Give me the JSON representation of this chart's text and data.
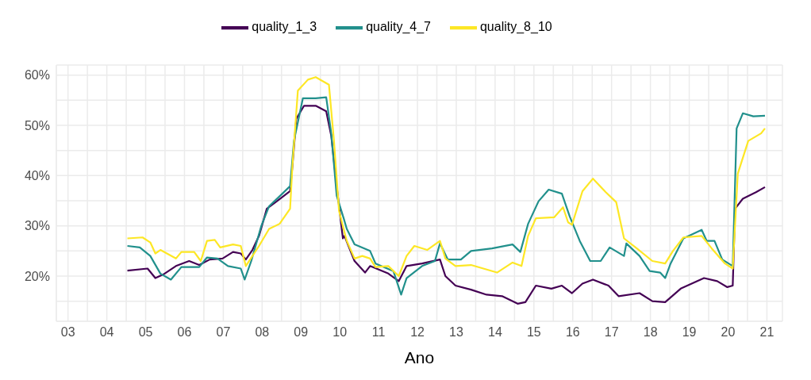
{
  "chart_data": {
    "type": "line",
    "xlabel": "Ano",
    "legend": "top",
    "grid": true,
    "marker": "none",
    "line_style": "solid",
    "xlim": [
      2.7,
      21.4
    ],
    "xticks": [
      {
        "value": 3,
        "label": "03"
      },
      {
        "value": 3.5,
        "label": null
      },
      {
        "value": 4,
        "label": "04"
      },
      {
        "value": 4.5,
        "label": null
      },
      {
        "value": 5,
        "label": "05"
      },
      {
        "value": 5.5,
        "label": null
      },
      {
        "value": 6,
        "label": "06"
      },
      {
        "value": 6.5,
        "label": null
      },
      {
        "value": 7,
        "label": "07"
      },
      {
        "value": 7.5,
        "label": null
      },
      {
        "value": 8,
        "label": "08"
      },
      {
        "value": 8.5,
        "label": null
      },
      {
        "value": 9,
        "label": "09"
      },
      {
        "value": 9.5,
        "label": null
      },
      {
        "value": 10,
        "label": "10"
      },
      {
        "value": 10.5,
        "label": null
      },
      {
        "value": 11,
        "label": "11"
      },
      {
        "value": 11.5,
        "label": null
      },
      {
        "value": 12,
        "label": "12"
      },
      {
        "value": 12.5,
        "label": null
      },
      {
        "value": 13,
        "label": "13"
      },
      {
        "value": 13.5,
        "label": null
      },
      {
        "value": 14,
        "label": "14"
      },
      {
        "value": 14.5,
        "label": null
      },
      {
        "value": 15,
        "label": "15"
      },
      {
        "value": 15.5,
        "label": null
      },
      {
        "value": 16,
        "label": "16"
      },
      {
        "value": 16.5,
        "label": null
      },
      {
        "value": 17,
        "label": "17"
      },
      {
        "value": 17.5,
        "label": null
      },
      {
        "value": 18,
        "label": "18"
      },
      {
        "value": 18.5,
        "label": null
      },
      {
        "value": 19,
        "label": "19"
      },
      {
        "value": 19.5,
        "label": null
      },
      {
        "value": 20,
        "label": "20"
      },
      {
        "value": 20.5,
        "label": null
      },
      {
        "value": 21,
        "label": "21"
      }
    ],
    "ylim": [
      11,
      62
    ],
    "yticks": [
      {
        "value": 15,
        "label": null
      },
      {
        "value": 20,
        "label": "20%"
      },
      {
        "value": 25,
        "label": null
      },
      {
        "value": 30,
        "label": "30%"
      },
      {
        "value": 35,
        "label": null
      },
      {
        "value": 40,
        "label": "40%"
      },
      {
        "value": 45,
        "label": null
      },
      {
        "value": 50,
        "label": "50%"
      },
      {
        "value": 55,
        "label": null
      },
      {
        "value": 60,
        "label": "60%"
      }
    ],
    "series": [
      {
        "name": "quality_1_3",
        "color": "#440154",
        "x": [
          4.53,
          5.05,
          5.25,
          5.45,
          5.78,
          6.12,
          6.38,
          6.65,
          6.98,
          7.25,
          7.45,
          7.58,
          7.75,
          7.92,
          8.12,
          8.38,
          8.72,
          8.78,
          8.88,
          9.08,
          9.38,
          9.65,
          9.78,
          9.92,
          10.08,
          10.12,
          10.38,
          10.65,
          10.78,
          11.25,
          11.52,
          11.72,
          12.12,
          12.58,
          12.72,
          12.98,
          13.38,
          13.78,
          14.18,
          14.58,
          14.78,
          15.05,
          15.45,
          15.72,
          15.98,
          16.25,
          16.52,
          16.92,
          17.18,
          17.72,
          18.05,
          18.38,
          18.78,
          19.38,
          19.72,
          19.98,
          20.12,
          20.18,
          20.38,
          20.72,
          20.95
        ],
        "values": [
          21.1,
          21.5,
          19.6,
          20.3,
          22,
          23,
          22.2,
          23.3,
          23.5,
          24.8,
          24.5,
          23.3,
          25.2,
          28,
          33.4,
          34.9,
          36.9,
          41.9,
          51.3,
          53.9,
          53.9,
          52.8,
          47.9,
          37.9,
          27.5,
          28,
          23,
          20.7,
          22,
          20.5,
          19,
          22,
          22.5,
          23.3,
          20,
          18.1,
          17.3,
          16.3,
          16,
          14.5,
          14.8,
          18.1,
          17.5,
          18.1,
          16.6,
          18.5,
          19.3,
          18.1,
          16,
          16.6,
          15,
          14.8,
          17.5,
          19.6,
          19,
          17.8,
          18.1,
          33.4,
          35.4,
          36.7,
          37.7
        ]
      },
      {
        "name": "quality_4_7",
        "color": "#21908c",
        "x": [
          4.53,
          4.85,
          5.12,
          5.38,
          5.65,
          5.92,
          6.38,
          6.58,
          6.85,
          7.12,
          7.45,
          7.55,
          7.72,
          7.98,
          8.18,
          8.52,
          8.72,
          8.82,
          9.05,
          9.38,
          9.65,
          9.78,
          9.92,
          10.1,
          10.18,
          10.38,
          10.78,
          10.92,
          11.38,
          11.58,
          11.72,
          12.12,
          12.45,
          12.58,
          12.78,
          13.12,
          13.38,
          13.92,
          14.45,
          14.65,
          14.85,
          15.12,
          15.38,
          15.72,
          15.92,
          16.18,
          16.45,
          16.72,
          16.95,
          17.32,
          17.38,
          17.72,
          17.98,
          18.25,
          18.38,
          18.52,
          18.85,
          19.32,
          19.45,
          19.65,
          19.85,
          20.12,
          20.22,
          20.38,
          20.65,
          20.95
        ],
        "values": [
          26,
          25.7,
          24,
          20.5,
          19.3,
          21.8,
          21.8,
          23.7,
          23.5,
          22,
          21.5,
          19.3,
          23,
          30,
          33.9,
          36.4,
          37.9,
          46.9,
          55.4,
          55.4,
          55.6,
          48.4,
          36,
          31.5,
          29.4,
          26.3,
          25,
          22.5,
          21,
          16.3,
          19.6,
          22,
          23,
          26.5,
          23.3,
          23.3,
          25,
          25.5,
          26.3,
          24.8,
          30.4,
          34.9,
          37.2,
          36.4,
          31.9,
          27,
          23,
          23,
          25.7,
          24,
          26.5,
          24,
          21,
          20.7,
          19.6,
          22.5,
          27.5,
          29.2,
          27,
          27,
          23.3,
          22,
          49.4,
          52.4,
          51.8,
          51.9
        ]
      },
      {
        "name": "quality_8_10",
        "color": "#fde725",
        "x": [
          4.53,
          4.92,
          5.12,
          5.25,
          5.38,
          5.78,
          5.92,
          6.25,
          6.42,
          6.58,
          6.78,
          6.92,
          7.25,
          7.45,
          7.58,
          7.92,
          8.18,
          8.45,
          8.72,
          8.78,
          8.92,
          9.18,
          9.38,
          9.72,
          9.85,
          9.98,
          10.1,
          10.18,
          10.38,
          10.58,
          10.78,
          10.92,
          11.25,
          11.52,
          11.72,
          11.92,
          12.25,
          12.58,
          12.72,
          12.98,
          13.38,
          14.05,
          14.45,
          14.68,
          14.85,
          15.05,
          15.52,
          15.75,
          15.88,
          15.98,
          16.25,
          16.52,
          16.85,
          17.12,
          17.32,
          17.65,
          18.05,
          18.38,
          18.58,
          18.85,
          19.32,
          19.58,
          19.92,
          20.12,
          20.25,
          20.52,
          20.85,
          20.95
        ],
        "values": [
          27.5,
          27.7,
          26.7,
          24.5,
          25.2,
          23.5,
          24.8,
          24.8,
          23,
          27,
          27.2,
          25.7,
          26.3,
          26,
          22,
          26,
          29.4,
          30.4,
          33.4,
          41.9,
          56.9,
          59.1,
          59.6,
          58.1,
          46.9,
          33,
          29.3,
          27,
          23.5,
          24,
          23.5,
          21.8,
          22,
          20,
          24,
          26,
          25.2,
          27,
          23.5,
          22,
          22.2,
          20.7,
          22.7,
          22,
          28,
          31.5,
          31.7,
          33.7,
          30.7,
          30.2,
          36.9,
          39.4,
          36.7,
          34.7,
          27.5,
          25.5,
          23,
          22.5,
          25,
          27.7,
          28,
          25.5,
          22.5,
          21.5,
          40.4,
          46.9,
          48.4,
          49.4
        ]
      }
    ]
  }
}
